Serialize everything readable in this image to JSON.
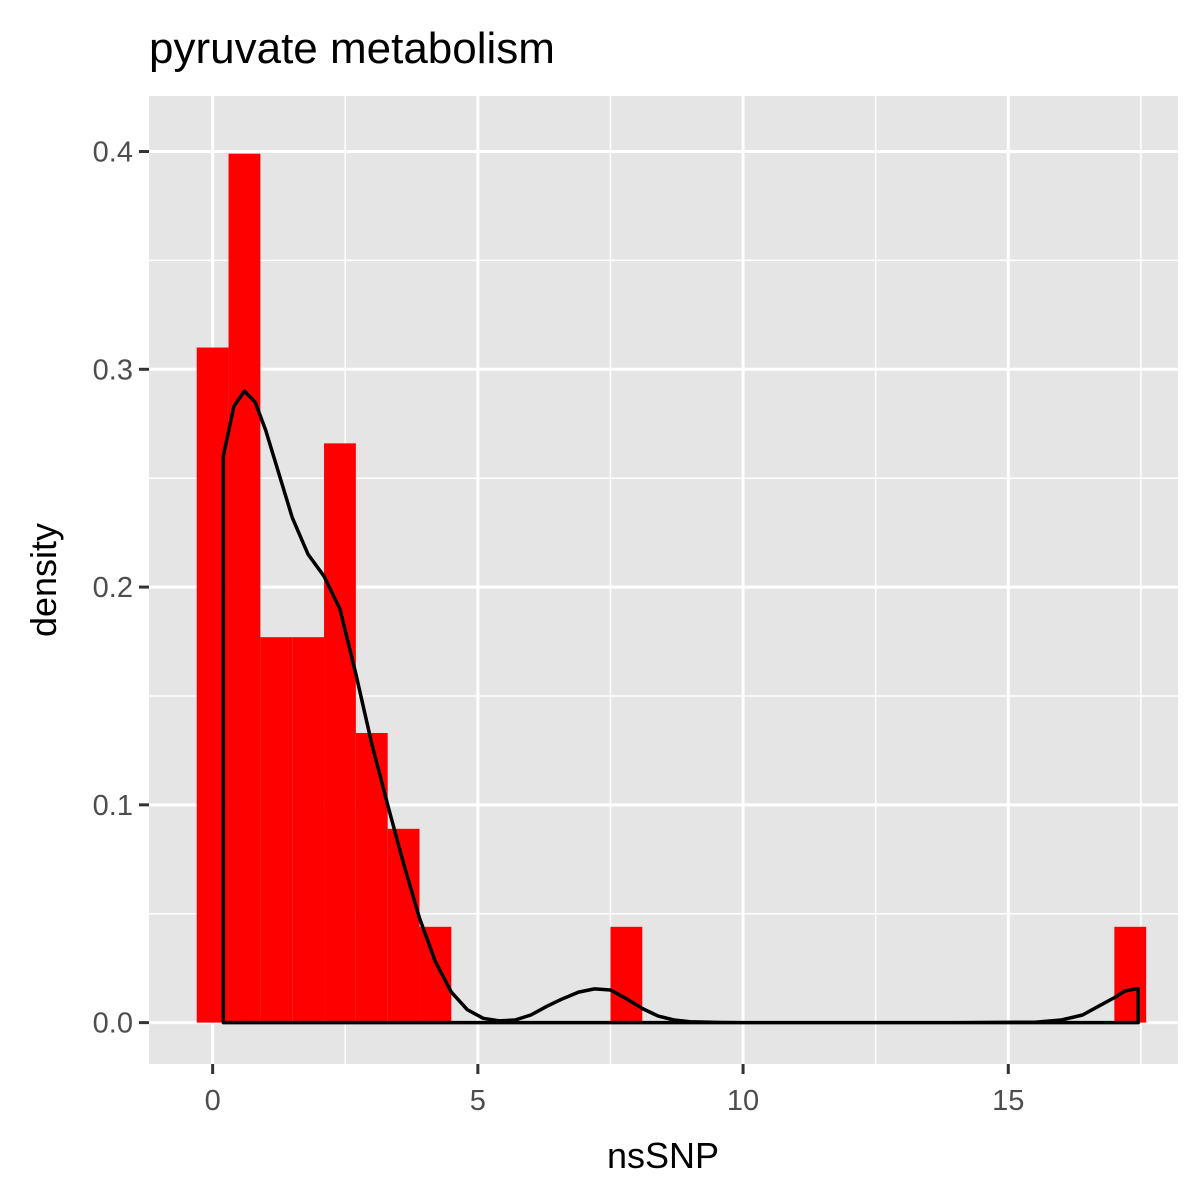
{
  "chart_data": {
    "type": "bar",
    "subtype": "histogram-with-density",
    "title": "pyruvate metabolism",
    "xlabel": "nsSNP",
    "ylabel": "density",
    "xlim": [
      -1.2,
      18.2
    ],
    "ylim": [
      -0.019,
      0.4255
    ],
    "x_ticks": [
      0,
      5,
      10,
      15
    ],
    "x_tick_labels": [
      "0",
      "5",
      "10",
      "15"
    ],
    "y_ticks": [
      0.0,
      0.1,
      0.2,
      0.3,
      0.4
    ],
    "y_tick_labels": [
      "0.0",
      "0.1",
      "0.2",
      "0.3",
      "0.4"
    ],
    "grid": true,
    "bins": [
      {
        "x0": -0.3,
        "x1": 0.3,
        "density": 0.31
      },
      {
        "x0": 0.3,
        "x1": 0.9,
        "density": 0.399
      },
      {
        "x0": 0.9,
        "x1": 1.5,
        "density": 0.177
      },
      {
        "x0": 1.5,
        "x1": 2.1,
        "density": 0.177
      },
      {
        "x0": 2.1,
        "x1": 2.7,
        "density": 0.266
      },
      {
        "x0": 2.7,
        "x1": 3.3,
        "density": 0.133
      },
      {
        "x0": 3.3,
        "x1": 3.9,
        "density": 0.089
      },
      {
        "x0": 3.9,
        "x1": 4.5,
        "density": 0.044
      },
      {
        "x0": 7.5,
        "x1": 8.1,
        "density": 0.044
      },
      {
        "x0": 17.0,
        "x1": 17.6,
        "density": 0.044
      }
    ],
    "density_curve": {
      "x": [
        0.2,
        0.2,
        0.4,
        0.6,
        0.8,
        1.0,
        1.2,
        1.5,
        1.8,
        2.1,
        2.4,
        2.7,
        3.0,
        3.3,
        3.6,
        3.9,
        4.2,
        4.5,
        4.8,
        5.1,
        5.4,
        5.7,
        6.0,
        6.3,
        6.6,
        6.9,
        7.2,
        7.5,
        7.8,
        8.1,
        8.4,
        8.7,
        9.0,
        9.5,
        10,
        12,
        14,
        15.5,
        16.0,
        16.4,
        16.7,
        17.0,
        17.2,
        17.4,
        17.45,
        17.45
      ],
      "y": [
        0.0,
        0.26,
        0.283,
        0.29,
        0.285,
        0.272,
        0.256,
        0.232,
        0.215,
        0.205,
        0.19,
        0.16,
        0.128,
        0.1,
        0.073,
        0.048,
        0.028,
        0.014,
        0.006,
        0.002,
        0.0008,
        0.0012,
        0.0035,
        0.0075,
        0.011,
        0.014,
        0.0155,
        0.015,
        0.011,
        0.0065,
        0.003,
        0.0012,
        0.0004,
        0.0001,
        0.0,
        0.0,
        0.0,
        0.0002,
        0.0012,
        0.0035,
        0.0075,
        0.0115,
        0.0145,
        0.0155,
        0.0155,
        0.0
      ]
    },
    "colors": {
      "bar_fill": "#ff0000",
      "curve": "#000000",
      "panel_background": "#e5e5e5",
      "grid": "#ffffff"
    }
  }
}
